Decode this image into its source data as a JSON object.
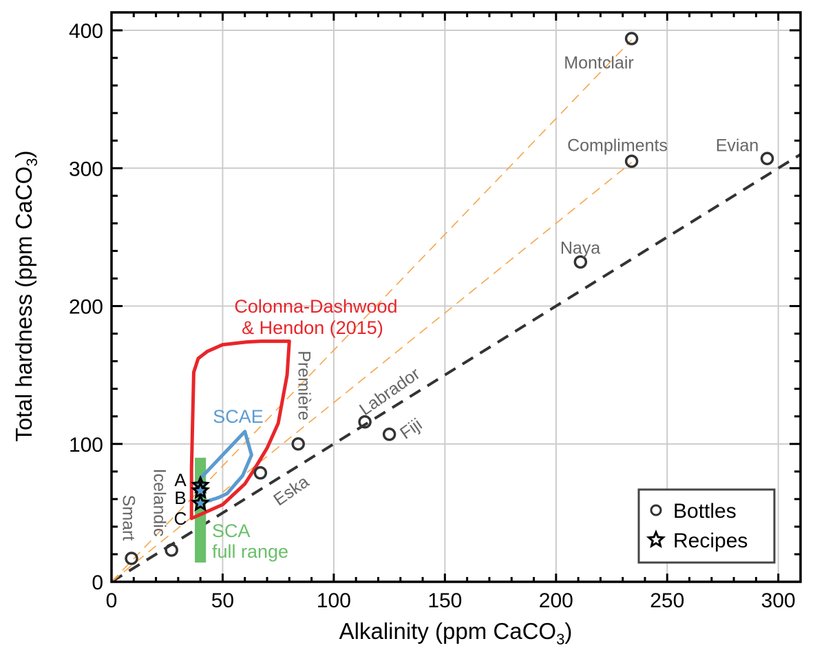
{
  "chart_data": {
    "type": "scatter",
    "title": "",
    "xlabel": "Alkalinity (ppm CaCO",
    "xlabel_sub": "3",
    "xlabel_end": ")",
    "ylabel": "Total hardness (ppm CaCO",
    "ylabel_sub": "3",
    "ylabel_end": ")",
    "xlim": [
      0,
      310
    ],
    "ylim": [
      0,
      413
    ],
    "xticks": [
      0,
      50,
      100,
      150,
      200,
      250,
      300
    ],
    "yticks": [
      0,
      100,
      200,
      300,
      400
    ],
    "x_minor_step": 10,
    "y_minor_step": 20,
    "grid": true,
    "legend": {
      "position": "bottom-right",
      "entries": [
        {
          "label": "Bottles",
          "marker": "circle"
        },
        {
          "label": "Recipes",
          "marker": "star"
        }
      ]
    },
    "colors": {
      "bottle": "#333333",
      "label_gray": "#666666",
      "colonna": "#e8262a",
      "scae": "#5b9bd0",
      "sca": "#6abf69",
      "guide_orange": "#f7a54a",
      "guide_black": "#333333",
      "grid": "#cccccc"
    },
    "bottles": [
      {
        "name": "Montclair",
        "x": 234,
        "y": 394
      },
      {
        "name": "Compliments",
        "x": 234,
        "y": 305
      },
      {
        "name": "Evian",
        "x": 295,
        "y": 307
      },
      {
        "name": "Naya",
        "x": 211,
        "y": 232
      },
      {
        "name": "Labrador",
        "x": 114,
        "y": 116
      },
      {
        "name": "Fiji",
        "x": 125,
        "y": 107
      },
      {
        "name": "Première",
        "x": 84,
        "y": 100
      },
      {
        "name": "Eska",
        "x": 67,
        "y": 79
      },
      {
        "name": "Icelandic",
        "x": 27,
        "y": 23
      },
      {
        "name": "Smart",
        "x": 9,
        "y": 17
      }
    ],
    "recipes": [
      {
        "name": "A",
        "x": 40,
        "y": 70
      },
      {
        "name": "",
        "x": 40,
        "y": 66
      },
      {
        "name": "B",
        "x": 40,
        "y": 57
      }
    ],
    "recipe_labels": [
      {
        "text": "A",
        "y": 74
      },
      {
        "text": "B",
        "y": 61
      },
      {
        "text": "C",
        "y": 46
      }
    ],
    "guide_lines": [
      {
        "name": "black-1to1",
        "slope": 1.0,
        "style": "thick-dashed"
      },
      {
        "name": "orange-compliments",
        "slope": 1.3,
        "style": "thin-dashed",
        "x_end": 234
      },
      {
        "name": "orange-montclair",
        "slope": 1.68,
        "style": "thin-dashed",
        "x_end": 234
      }
    ],
    "regions": [
      {
        "name": "Colonna-Dashwood & Hendon (2015)",
        "label_lines": [
          "Colonna-Dashwood",
          " & Hendon (2015)"
        ],
        "polygon": [
          [
            36,
            46
          ],
          [
            36,
            82
          ],
          [
            37,
            152
          ],
          [
            39,
            162
          ],
          [
            43,
            167
          ],
          [
            50,
            172
          ],
          [
            61,
            174
          ],
          [
            67,
            174.5
          ],
          [
            80,
            174.5
          ],
          [
            79,
            150
          ],
          [
            75,
            115
          ],
          [
            70,
            97
          ],
          [
            64,
            81
          ],
          [
            60,
            71
          ],
          [
            50,
            56
          ]
        ]
      },
      {
        "name": "SCAE",
        "label_lines": [
          "SCAE"
        ],
        "polygon": [
          [
            40,
            75
          ],
          [
            60,
            109
          ],
          [
            63,
            92
          ],
          [
            59,
            77
          ],
          [
            52,
            64
          ],
          [
            48,
            61
          ],
          [
            40,
            57
          ]
        ]
      }
    ],
    "sca_bar": {
      "label_lines": [
        "SCA",
        "full range"
      ],
      "x_range": [
        37.5,
        42.5
      ],
      "y_range": [
        14,
        90
      ]
    }
  }
}
